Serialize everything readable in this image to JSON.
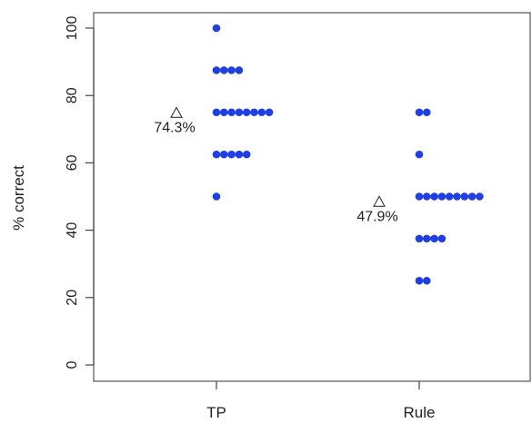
{
  "chart_data": {
    "type": "scatter",
    "title": "",
    "xlabel": "",
    "ylabel": "% correct",
    "categories": [
      "TP",
      "Rule"
    ],
    "ylim": [
      0,
      100
    ],
    "yticks": [
      0,
      20,
      40,
      60,
      80,
      100
    ],
    "grid": false,
    "point_color": "#1f3fe0",
    "series": [
      {
        "category": "TP",
        "points": [
          {
            "y": 100,
            "count": 1
          },
          {
            "y": 87.5,
            "count": 4
          },
          {
            "y": 75,
            "count": 8
          },
          {
            "y": 62.5,
            "count": 5
          },
          {
            "y": 50,
            "count": 1
          }
        ],
        "mean": {
          "y": 74.3,
          "label": "74.3%"
        }
      },
      {
        "category": "Rule",
        "points": [
          {
            "y": 75,
            "count": 2
          },
          {
            "y": 62.5,
            "count": 1
          },
          {
            "y": 50,
            "count": 9
          },
          {
            "y": 37.5,
            "count": 4
          },
          {
            "y": 25,
            "count": 2
          }
        ],
        "mean": {
          "y": 47.9,
          "label": "47.9%"
        }
      }
    ]
  }
}
